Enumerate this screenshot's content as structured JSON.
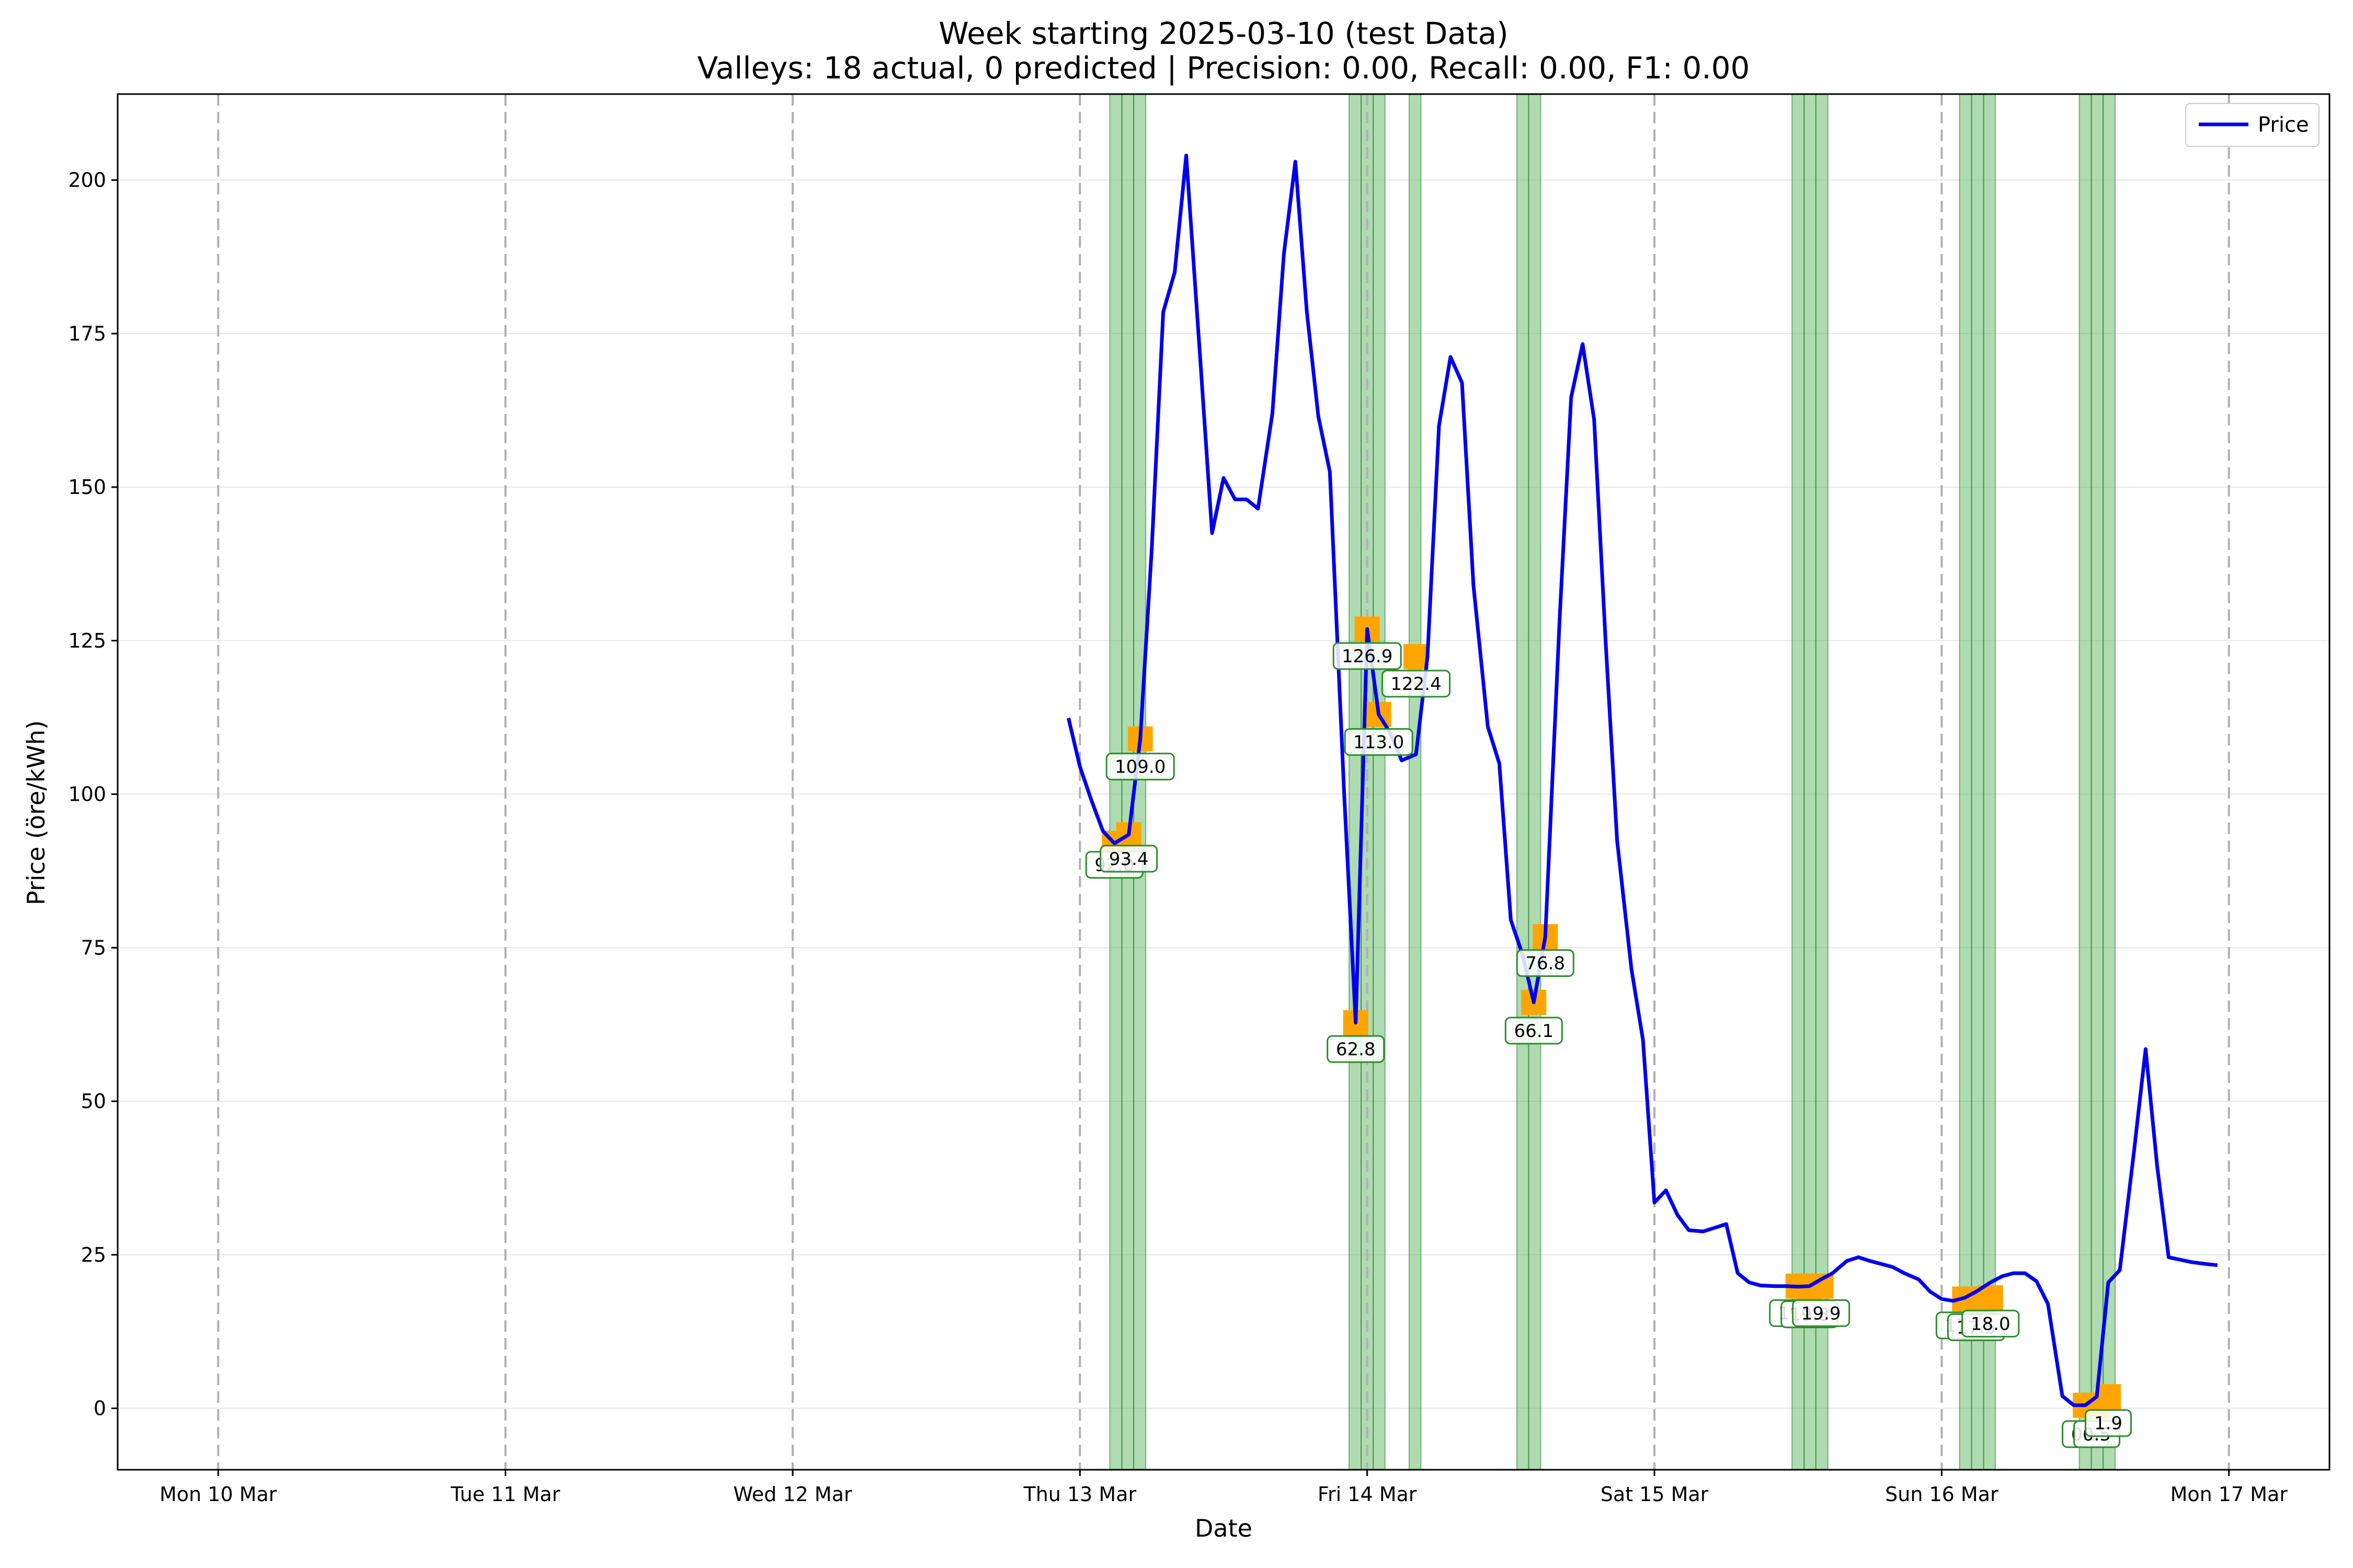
{
  "chart_data": {
    "type": "line",
    "title": "Week starting 2025-03-10 (test Data)",
    "subtitle": "Valleys: 18 actual, 0 predicted | Precision: 0.00, Recall: 0.00, F1: 0.00",
    "xlabel": "Date",
    "ylabel": "Price (öre/kWh)",
    "xlim": [
      -0.35,
      7.35
    ],
    "ylim": [
      -10,
      214
    ],
    "grid": "horizontal",
    "legend_position": "top-right",
    "day_ticks": [
      {
        "x": 0,
        "label": "Mon 10 Mar"
      },
      {
        "x": 1,
        "label": "Tue 11 Mar"
      },
      {
        "x": 2,
        "label": "Wed 12 Mar"
      },
      {
        "x": 3,
        "label": "Thu 13 Mar"
      },
      {
        "x": 4,
        "label": "Fri 14 Mar"
      },
      {
        "x": 5,
        "label": "Sat 15 Mar"
      },
      {
        "x": 6,
        "label": "Sun 16 Mar"
      },
      {
        "x": 7,
        "label": "Mon 17 Mar"
      }
    ],
    "y_ticks": [
      0,
      25,
      50,
      75,
      100,
      125,
      150,
      175,
      200
    ],
    "colors": {
      "line": "#0000ee",
      "valley_band": "#4caf50",
      "valley_marker": "#ffa500",
      "annotation_border": "#2e8b2e",
      "day_divider": "#b0b0b0",
      "grid": "#e6e6e6"
    },
    "series": [
      {
        "name": "Price",
        "x": [
          2.96,
          3.0,
          3.04,
          3.08,
          3.12,
          3.17,
          3.21,
          3.25,
          3.29,
          3.33,
          3.37,
          3.42,
          3.46,
          3.5,
          3.54,
          3.58,
          3.62,
          3.67,
          3.71,
          3.75,
          3.79,
          3.83,
          3.87,
          3.92,
          3.96,
          4.0,
          4.04,
          4.08,
          4.12,
          4.17,
          4.21,
          4.25,
          4.29,
          4.33,
          4.37,
          4.42,
          4.46,
          4.5,
          4.54,
          4.58,
          4.62,
          4.67,
          4.71,
          4.75,
          4.79,
          4.83,
          4.87,
          4.92,
          4.96,
          5.0,
          5.04,
          5.08,
          5.12,
          5.17,
          5.21,
          5.25,
          5.29,
          5.33,
          5.37,
          5.42,
          5.46,
          5.5,
          5.54,
          5.58,
          5.62,
          5.67,
          5.71,
          5.75,
          5.79,
          5.83,
          5.87,
          5.92,
          5.96,
          6.0,
          6.04,
          6.08,
          6.12,
          6.17,
          6.21,
          6.25,
          6.29,
          6.33,
          6.37,
          6.42,
          6.46,
          6.5,
          6.54,
          6.58,
          6.62,
          6.67,
          6.71,
          6.75,
          6.79,
          6.83,
          6.87,
          6.92,
          6.96
        ],
        "y": [
          112.4,
          104.5,
          99,
          94,
          92,
          93.4,
          109,
          140,
          178.5,
          185,
          204,
          170,
          142.5,
          151.5,
          148,
          148,
          146.5,
          162,
          188,
          203,
          178.5,
          161.5,
          152.5,
          100,
          62.8,
          126.9,
          113,
          110,
          105.5,
          106.5,
          122.4,
          160,
          171.2,
          167,
          134,
          111,
          105,
          79.5,
          74,
          66.1,
          76.8,
          128.5,
          164.6,
          173.3,
          161,
          125,
          92.5,
          71.5,
          60,
          33.5,
          35.5,
          31.5,
          29,
          28.8,
          29.4,
          30,
          22,
          20.5,
          20,
          19.9,
          19.9,
          19.8,
          19.9,
          21,
          22,
          24,
          24.6,
          24,
          23.5,
          23,
          22,
          21,
          19,
          17.8,
          17.5,
          18,
          19,
          20.5,
          21.5,
          22,
          22,
          20.7,
          17,
          2,
          0.5,
          0.5,
          1.9,
          20.5,
          22.5,
          42,
          58.5,
          39.5,
          24.6,
          24.2,
          23.8,
          23.5,
          23.3
        ]
      }
    ],
    "valley_bands": [
      [
        3.104,
        3.146
      ],
      [
        3.146,
        3.187
      ],
      [
        3.187,
        3.229
      ],
      [
        3.937,
        3.979
      ],
      [
        3.979,
        4.021
      ],
      [
        4.021,
        4.062
      ],
      [
        4.146,
        4.187
      ],
      [
        4.521,
        4.562
      ],
      [
        4.562,
        4.604
      ],
      [
        5.479,
        5.521
      ],
      [
        5.521,
        5.562
      ],
      [
        5.562,
        5.604
      ],
      [
        6.062,
        6.104
      ],
      [
        6.104,
        6.146
      ],
      [
        6.146,
        6.187
      ],
      [
        6.479,
        6.521
      ],
      [
        6.521,
        6.562
      ],
      [
        6.562,
        6.604
      ]
    ],
    "valley_markers": [
      {
        "x": 3.12,
        "y": 92.0
      },
      {
        "x": 3.17,
        "y": 93.4
      },
      {
        "x": 3.21,
        "y": 109.0
      },
      {
        "x": 3.96,
        "y": 62.8
      },
      {
        "x": 4.0,
        "y": 126.9
      },
      {
        "x": 4.04,
        "y": 113.0
      },
      {
        "x": 4.17,
        "y": 122.4
      },
      {
        "x": 4.58,
        "y": 66.1
      },
      {
        "x": 4.62,
        "y": 76.8
      },
      {
        "x": 5.5,
        "y": 19.9
      },
      {
        "x": 5.54,
        "y": 19.8
      },
      {
        "x": 5.58,
        "y": 19.9
      },
      {
        "x": 6.08,
        "y": 17.8
      },
      {
        "x": 6.12,
        "y": 17.5
      },
      {
        "x": 6.17,
        "y": 18.0
      },
      {
        "x": 6.5,
        "y": 0.5
      },
      {
        "x": 6.54,
        "y": 0.5
      },
      {
        "x": 6.58,
        "y": 1.9
      }
    ],
    "annotations": [
      {
        "x": 3.12,
        "y": 88.5,
        "text": "92.0"
      },
      {
        "x": 3.17,
        "y": 89.5,
        "text": "93.4"
      },
      {
        "x": 3.21,
        "y": 104.5,
        "text": "109.0"
      },
      {
        "x": 3.96,
        "y": 58.5,
        "text": "62.8"
      },
      {
        "x": 4.0,
        "y": 122.5,
        "text": "126.9"
      },
      {
        "x": 4.04,
        "y": 108.5,
        "text": "113.0"
      },
      {
        "x": 4.17,
        "y": 118.0,
        "text": "122.4"
      },
      {
        "x": 4.58,
        "y": 61.5,
        "text": "66.1"
      },
      {
        "x": 4.62,
        "y": 72.5,
        "text": "76.8"
      },
      {
        "x": 5.5,
        "y": 15.5,
        "text": "19.9"
      },
      {
        "x": 5.54,
        "y": 15.3,
        "text": "19.8"
      },
      {
        "x": 5.58,
        "y": 15.5,
        "text": "19.9"
      },
      {
        "x": 6.08,
        "y": 13.5,
        "text": "17.8"
      },
      {
        "x": 6.12,
        "y": 13.2,
        "text": "17.5"
      },
      {
        "x": 6.17,
        "y": 13.8,
        "text": "18.0"
      },
      {
        "x": 6.5,
        "y": -4.2,
        "text": "0.5"
      },
      {
        "x": 6.54,
        "y": -4.2,
        "text": "0.5"
      },
      {
        "x": 6.58,
        "y": -2.4,
        "text": "1.9"
      }
    ],
    "legend": [
      {
        "label": "Price"
      }
    ]
  }
}
